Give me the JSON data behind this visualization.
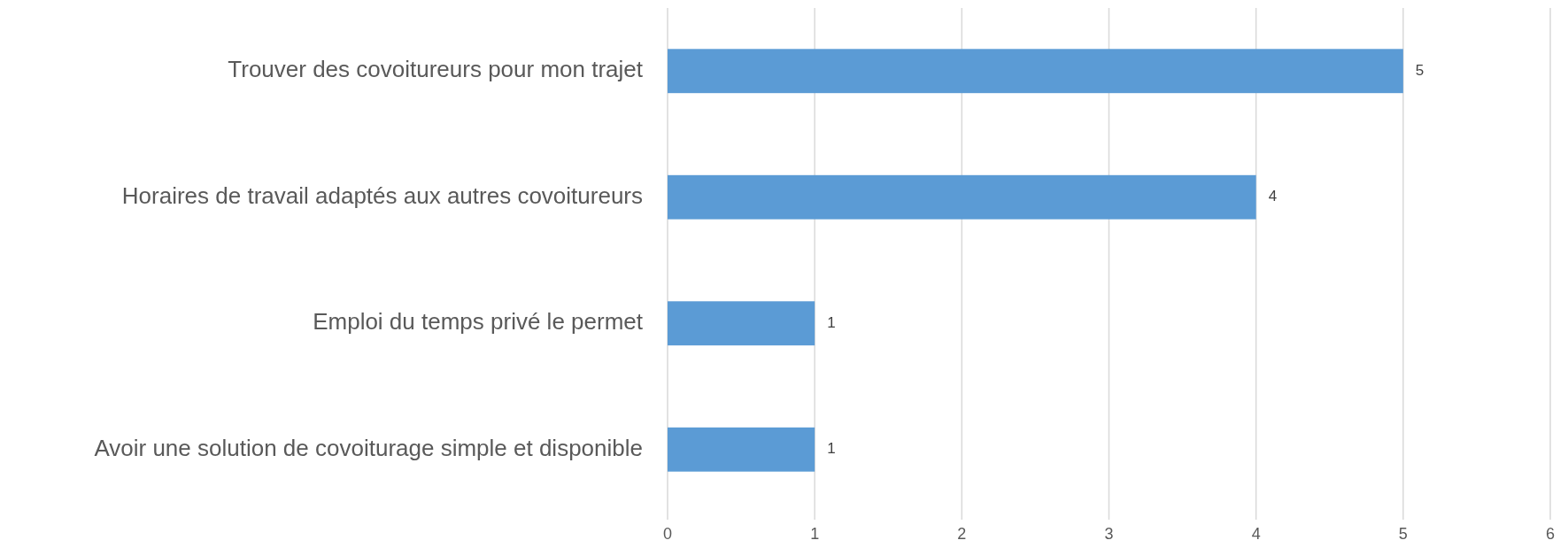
{
  "chart_data": {
    "type": "bar",
    "orientation": "horizontal",
    "categories": [
      "Trouver des covoitureurs pour mon trajet",
      "Horaires de travail adaptés aux autres covoitureurs",
      "Emploi du temps privé le permet",
      "Avoir une solution de covoiturage simple et disponible"
    ],
    "values": [
      5,
      4,
      1,
      1
    ],
    "color": "#5b9bd5",
    "xlim": [
      0,
      6
    ],
    "xticks": [
      0,
      1,
      2,
      3,
      4,
      5,
      6
    ],
    "grid": "x",
    "data_labels": true
  }
}
